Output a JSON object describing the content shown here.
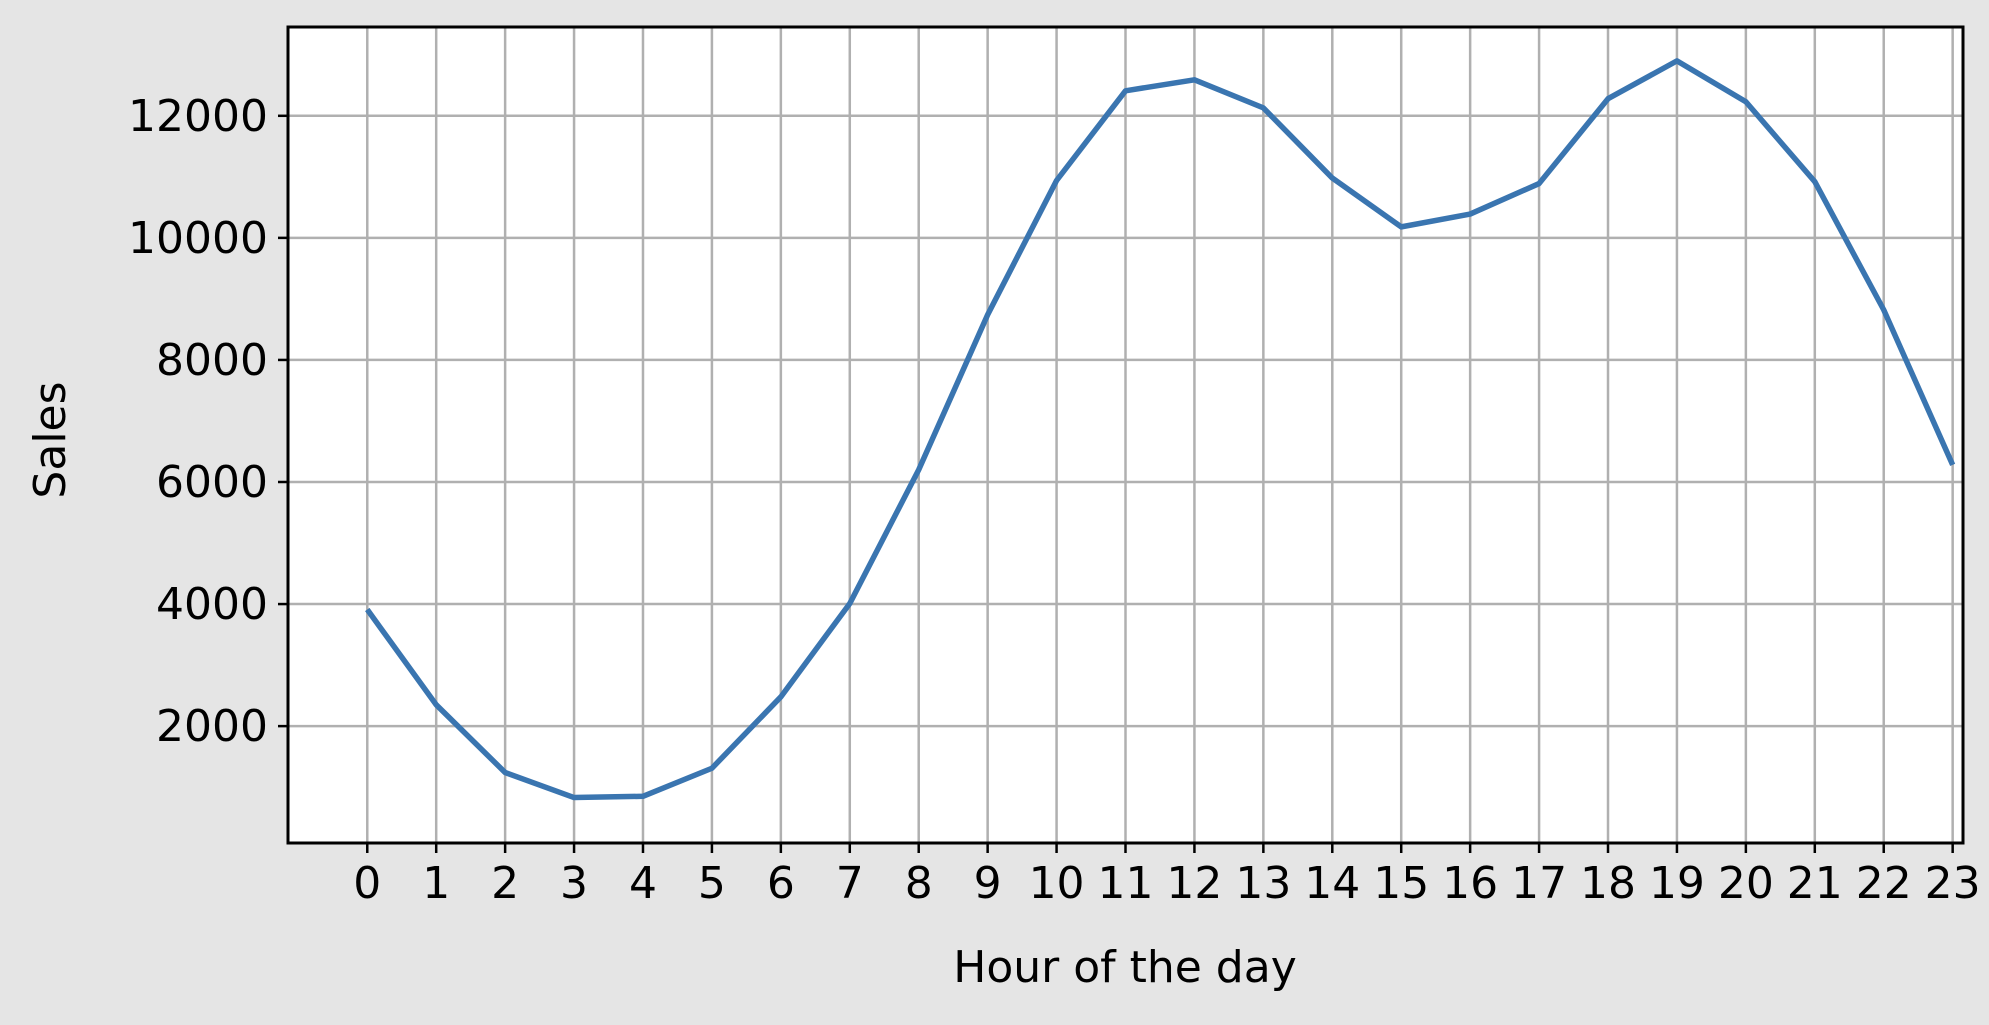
{
  "chart_data": {
    "type": "line",
    "title": "",
    "xlabel": "Hour of the day",
    "ylabel": "Sales",
    "categories": [
      "0",
      "1",
      "2",
      "3",
      "4",
      "5",
      "6",
      "7",
      "8",
      "9",
      "10",
      "11",
      "12",
      "13",
      "14",
      "15",
      "16",
      "17",
      "18",
      "19",
      "20",
      "21",
      "22",
      "23"
    ],
    "x": [
      0,
      1,
      2,
      3,
      4,
      5,
      6,
      7,
      8,
      9,
      10,
      11,
      12,
      13,
      14,
      15,
      16,
      17,
      18,
      19,
      20,
      21,
      22,
      23
    ],
    "series": [
      {
        "color": "#3a75b0",
        "values": [
          3910,
          2350,
          1240,
          830,
          850,
          1310,
          2480,
          4010,
          6200,
          8740,
          10940,
          12410,
          12590,
          12130,
          10980,
          10180,
          10390,
          10890,
          12280,
          12900,
          12230,
          10920,
          8820,
          6280
        ]
      }
    ],
    "yticks": [
      2000,
      4000,
      6000,
      8000,
      10000,
      12000
    ],
    "ytick_labels": [
      "2000",
      "4000",
      "6000",
      "8000",
      "10000",
      "12000"
    ],
    "xlim": [
      -1.15,
      23.15
    ],
    "ylim": [
      85,
      13455
    ],
    "grid": true,
    "legend": "none"
  }
}
